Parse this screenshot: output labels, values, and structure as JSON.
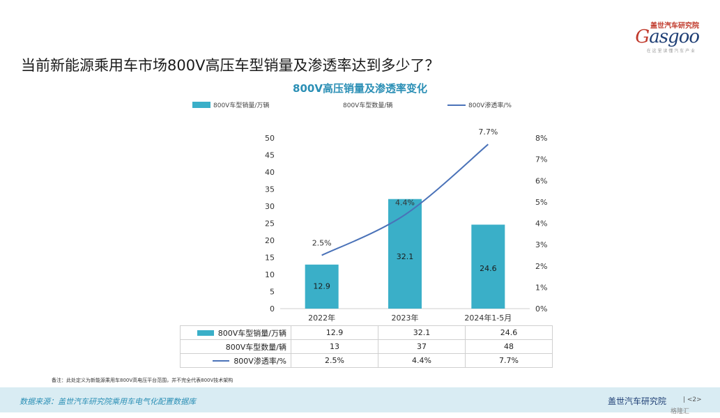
{
  "logo": {
    "top": "盖世汽车研究院",
    "main_g": "G",
    "main_rest": "asgoo",
    "sub": "在 这 里 读 懂 汽 车 产 业"
  },
  "headline": "当前新能源乘用车市场800V高压车型销量及渗透率达到多少了？",
  "chart_data": {
    "type": "bar",
    "title": "800V高压销量及渗透率变化",
    "categories": [
      "2022年",
      "2023年",
      "2024年1-5月"
    ],
    "series": [
      {
        "name": "800V车型销量/万辆",
        "type": "bar",
        "axis": "left",
        "values": [
          12.9,
          32.1,
          24.6
        ]
      },
      {
        "name": "800V车型数量/辆",
        "type": "none",
        "values": [
          13,
          37,
          48
        ]
      },
      {
        "name": "800V渗透率/%",
        "type": "line",
        "axis": "right",
        "values": [
          2.5,
          4.4,
          7.7
        ]
      }
    ],
    "y_left": {
      "min": 0,
      "max": 50,
      "step": 5,
      "ticks": [
        "0",
        "5",
        "10",
        "15",
        "20",
        "25",
        "30",
        "35",
        "40",
        "45",
        "50"
      ]
    },
    "y_right": {
      "min": 0,
      "max": 8,
      "step": 1,
      "ticks": [
        "0%",
        "1%",
        "2%",
        "3%",
        "4%",
        "5%",
        "6%",
        "7%",
        "8%"
      ]
    },
    "bar_labels": [
      "12.9",
      "32.1",
      "24.6"
    ],
    "line_labels": [
      "2.5%",
      "4.4%",
      "7.7%"
    ],
    "colors": {
      "bar": "#3aafc8",
      "line": "#4a72b8"
    }
  },
  "table": {
    "rows": [
      {
        "label": "800V车型销量/万辆",
        "marker": "bar",
        "values": [
          "12.9",
          "32.1",
          "24.6"
        ]
      },
      {
        "label": "800V车型数量/辆",
        "marker": "none",
        "values": [
          "13",
          "37",
          "48"
        ]
      },
      {
        "label": "800V渗透率/%",
        "marker": "line",
        "values": [
          "2.5%",
          "4.4%",
          "7.7%"
        ]
      }
    ]
  },
  "note": "备注：此处定义为新能源乘用车800V高电压平台范围，并不完全代表800V技术架构",
  "footer": {
    "source": "数据来源：盖世汽车研究院乘用车电气化配置数据库",
    "org": "盖世汽车研究院",
    "page": "| <2>"
  },
  "corner_mark": "格隆汇"
}
